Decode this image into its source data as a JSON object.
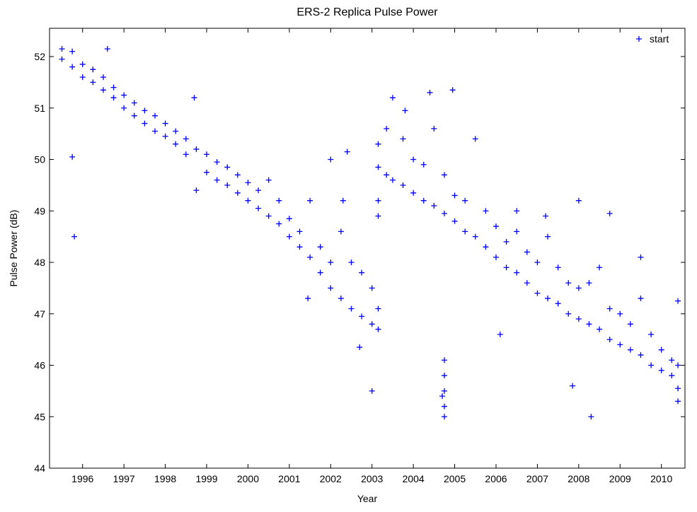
{
  "chart_data": {
    "type": "scatter",
    "title": "ERS-2 Replica Pulse Power",
    "x_label": "Year",
    "y_label": "Pulse Power (dB)",
    "xlim": [
      1995.2,
      2010.57
    ],
    "ylim": [
      44,
      52.55
    ],
    "xticks": [
      1996,
      1997,
      1998,
      1999,
      2000,
      2001,
      2002,
      2003,
      2004,
      2005,
      2006,
      2007,
      2008,
      2009,
      2010
    ],
    "yticks": [
      44,
      45,
      46,
      47,
      48,
      49,
      50,
      51,
      52
    ],
    "grid": false,
    "legend": "upper right",
    "series": [
      {
        "name": "start",
        "color": "#0000ff",
        "x": [
          1995.5,
          1995.5,
          1995.75,
          1995.75,
          1996.0,
          1996.0,
          1996.25,
          1996.25,
          1996.5,
          1996.5,
          1996.6,
          1996.75,
          1996.75,
          1997.0,
          1997.0,
          1997.25,
          1997.25,
          1997.5,
          1997.5,
          1997.75,
          1997.75,
          1998.0,
          1998.0,
          1998.25,
          1998.25,
          1998.5,
          1998.5,
          1998.75,
          1998.75,
          1999.0,
          1999.0,
          1999.25,
          1999.25,
          1999.5,
          1999.5,
          1999.75,
          1999.75,
          2000.0,
          2000.0,
          2000.25,
          2000.25,
          2000.5,
          2000.5,
          2000.75,
          2000.75,
          2001.0,
          2001.0,
          2001.25,
          2001.25,
          2001.5,
          2001.5,
          2001.75,
          2001.75,
          2002.0,
          2002.0,
          2002.25,
          2002.25,
          2002.5,
          2002.5,
          2002.75,
          2002.75,
          2003.0,
          2003.0,
          2003.15,
          2003.15,
          1995.75,
          1995.8,
          1998.7,
          2002.0,
          2002.4,
          2001.45,
          2002.7,
          2003.0,
          2003.15,
          2003.15,
          2002.3,
          2003.15,
          2003.15,
          2003.35,
          2003.35,
          2003.5,
          2003.5,
          2003.75,
          2003.75,
          2004.0,
          2004.0,
          2004.25,
          2004.25,
          2004.5,
          2004.5,
          2004.75,
          2004.75,
          2005.0,
          2005.0,
          2005.25,
          2005.25,
          2005.5,
          2005.5,
          2005.75,
          2005.75,
          2006.0,
          2006.0,
          2006.25,
          2006.25,
          2006.5,
          2006.5,
          2006.75,
          2006.75,
          2007.0,
          2007.0,
          2007.25,
          2007.25,
          2007.5,
          2007.5,
          2007.75,
          2007.75,
          2008.0,
          2008.0,
          2008.25,
          2008.25,
          2008.5,
          2008.5,
          2008.75,
          2008.75,
          2009.0,
          2009.0,
          2009.25,
          2009.25,
          2009.5,
          2009.5,
          2009.75,
          2009.75,
          2010.0,
          2010.0,
          2010.25,
          2010.25,
          2010.4,
          2010.4,
          2004.4,
          2004.95,
          2003.8,
          2004.75,
          2004.75,
          2004.75,
          2004.75,
          2004.75,
          2004.7,
          2006.1,
          2007.85,
          2008.3,
          2010.4,
          2010.4,
          2008.75,
          2008.0,
          2009.5,
          2006.5,
          2007.2
        ],
        "values": [
          52.15,
          51.95,
          52.1,
          51.8,
          51.85,
          51.6,
          51.75,
          51.5,
          51.6,
          51.35,
          52.15,
          51.4,
          51.2,
          51.25,
          51.0,
          51.1,
          50.85,
          50.95,
          50.7,
          50.85,
          50.55,
          50.7,
          50.45,
          50.55,
          50.3,
          50.4,
          50.1,
          50.2,
          49.4,
          50.1,
          49.75,
          49.95,
          49.6,
          49.85,
          49.5,
          49.7,
          49.35,
          49.55,
          49.2,
          49.4,
          49.05,
          49.6,
          48.9,
          49.2,
          48.75,
          48.85,
          48.5,
          48.6,
          48.3,
          49.2,
          48.1,
          48.3,
          47.8,
          48.0,
          47.5,
          48.6,
          47.3,
          48.0,
          47.1,
          47.8,
          46.95,
          47.5,
          46.8,
          47.1,
          46.7,
          50.05,
          48.5,
          51.2,
          50.0,
          50.15,
          47.3,
          46.35,
          45.5,
          49.2,
          48.9,
          49.2,
          50.3,
          49.85,
          50.6,
          49.7,
          51.2,
          49.6,
          50.4,
          49.5,
          50.0,
          49.35,
          49.9,
          49.2,
          50.6,
          49.1,
          49.7,
          48.95,
          49.3,
          48.8,
          49.2,
          48.6,
          50.4,
          48.5,
          49.0,
          48.3,
          48.7,
          48.1,
          48.4,
          47.9,
          48.6,
          47.8,
          48.2,
          47.6,
          48.0,
          47.4,
          48.5,
          47.3,
          47.9,
          47.2,
          47.6,
          47.0,
          47.5,
          46.9,
          47.6,
          46.8,
          47.9,
          46.7,
          47.1,
          46.5,
          47.0,
          46.4,
          46.8,
          46.3,
          47.3,
          46.2,
          46.6,
          46.0,
          46.3,
          45.9,
          46.1,
          45.8,
          46.0,
          45.55,
          51.3,
          51.35,
          50.95,
          46.1,
          45.8,
          45.5,
          45.2,
          45.0,
          45.4,
          46.6,
          45.6,
          45.0,
          45.3,
          47.25,
          48.95,
          49.2,
          48.1,
          49.0,
          48.9
        ]
      }
    ]
  }
}
